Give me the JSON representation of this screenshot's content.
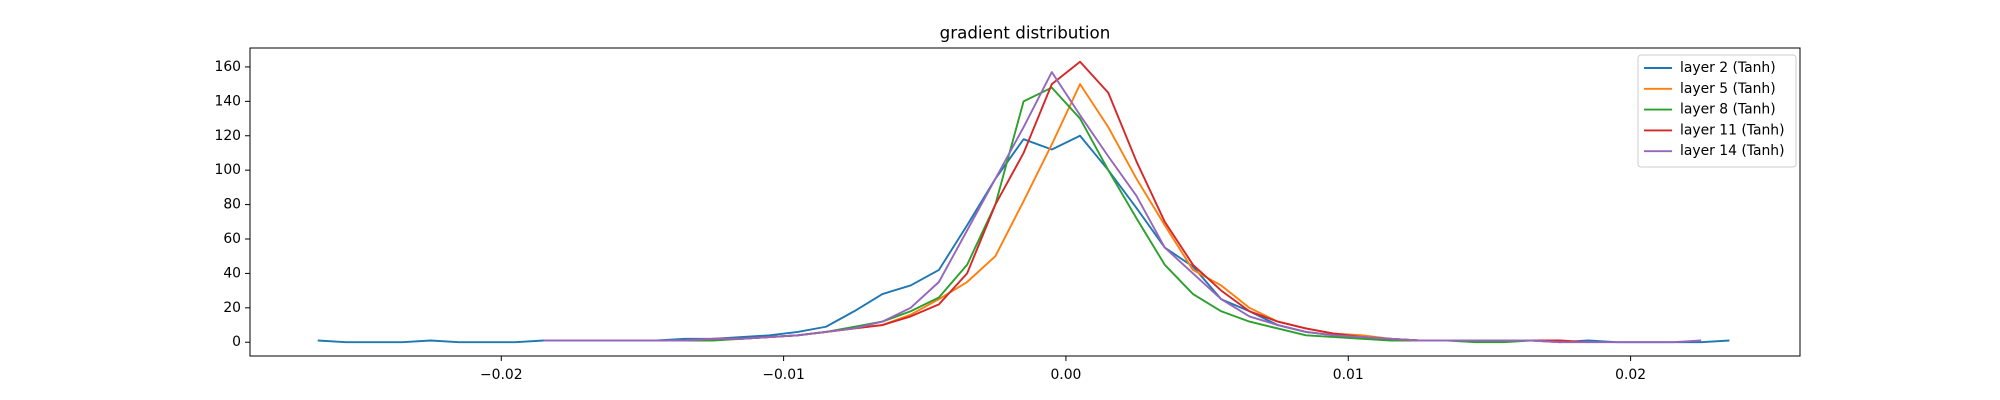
{
  "chart_data": {
    "type": "line",
    "title": "gradient distribution",
    "xlim": [
      -0.0289,
      0.026
    ],
    "ylim": [
      -8,
      171
    ],
    "xticks": [
      {
        "value": -0.02,
        "label": "−0.02"
      },
      {
        "value": -0.01,
        "label": "−0.01"
      },
      {
        "value": 0,
        "label": "0.00"
      },
      {
        "value": 0.01,
        "label": "0.01"
      },
      {
        "value": 0.02,
        "label": "0.02"
      }
    ],
    "yticks": [
      0,
      20,
      40,
      60,
      80,
      100,
      120,
      140,
      160
    ],
    "grid": false,
    "legend": "upper right",
    "series": [
      {
        "name": "layer 2 (Tanh)",
        "color": "#1f77b4",
        "x": [
          -0.0265,
          -0.0255,
          -0.0245,
          -0.0235,
          -0.0225,
          -0.0215,
          -0.0205,
          -0.0195,
          -0.0185,
          -0.0175,
          -0.0165,
          -0.0155,
          -0.0145,
          -0.0135,
          -0.0125,
          -0.0115,
          -0.0105,
          -0.0095,
          -0.0085,
          -0.0075,
          -0.0065,
          -0.0055,
          -0.0045,
          -0.0035,
          -0.0025,
          -0.0015,
          -0.0005,
          0.0005,
          0.0015,
          0.0025,
          0.0035,
          0.0045,
          0.0055,
          0.0065,
          0.0075,
          0.0085,
          0.0095,
          0.0105,
          0.0115,
          0.0125,
          0.0135,
          0.0145,
          0.0155,
          0.0165,
          0.0175,
          0.0185,
          0.0195,
          0.0205,
          0.0215,
          0.0225,
          0.0235
        ],
        "values": [
          1,
          0,
          0,
          0,
          1,
          0,
          0,
          0,
          1,
          1,
          1,
          1,
          1,
          2,
          2,
          3,
          4,
          6,
          9,
          18,
          28,
          33,
          42,
          68,
          95,
          118,
          112,
          120,
          100,
          78,
          55,
          44,
          25,
          18,
          10,
          6,
          4,
          3,
          2,
          1,
          1,
          1,
          1,
          1,
          0,
          1,
          0,
          0,
          0,
          0,
          1
        ]
      },
      {
        "name": "layer 5 (Tanh)",
        "color": "#ff7f0e",
        "x": [
          -0.0175,
          -0.0165,
          -0.0155,
          -0.0145,
          -0.0135,
          -0.0125,
          -0.0115,
          -0.0105,
          -0.0095,
          -0.0085,
          -0.0075,
          -0.0065,
          -0.0055,
          -0.0045,
          -0.0035,
          -0.0025,
          -0.0015,
          -0.0005,
          0.0005,
          0.0015,
          0.0025,
          0.0035,
          0.0045,
          0.0055,
          0.0065,
          0.0075,
          0.0085,
          0.0095,
          0.0105,
          0.0115,
          0.0125,
          0.0135,
          0.0145,
          0.0155,
          0.0165,
          0.0175
        ],
        "values": [
          1,
          1,
          1,
          1,
          1,
          2,
          2,
          3,
          4,
          6,
          8,
          10,
          16,
          25,
          35,
          50,
          82,
          115,
          150,
          125,
          95,
          68,
          42,
          33,
          20,
          12,
          8,
          5,
          4,
          2,
          1,
          1,
          1,
          1,
          1,
          0
        ]
      },
      {
        "name": "layer 8 (Tanh)",
        "color": "#2ca02c",
        "x": [
          -0.0165,
          -0.0155,
          -0.0145,
          -0.0135,
          -0.0125,
          -0.0115,
          -0.0105,
          -0.0095,
          -0.0085,
          -0.0075,
          -0.0065,
          -0.0055,
          -0.0045,
          -0.0035,
          -0.0025,
          -0.0015,
          -0.0005,
          0.0005,
          0.0015,
          0.0025,
          0.0035,
          0.0045,
          0.0055,
          0.0065,
          0.0075,
          0.0085,
          0.0095,
          0.0105,
          0.0115,
          0.0125,
          0.0135,
          0.0145,
          0.0155,
          0.0165
        ],
        "values": [
          1,
          1,
          1,
          1,
          1,
          2,
          3,
          4,
          6,
          9,
          12,
          18,
          26,
          45,
          80,
          140,
          148,
          130,
          100,
          72,
          45,
          28,
          18,
          12,
          8,
          4,
          3,
          2,
          1,
          1,
          1,
          0,
          0,
          1
        ]
      },
      {
        "name": "layer 11 (Tanh)",
        "color": "#d62728",
        "x": [
          -0.0165,
          -0.0155,
          -0.0145,
          -0.0135,
          -0.0125,
          -0.0115,
          -0.0105,
          -0.0095,
          -0.0085,
          -0.0075,
          -0.0065,
          -0.0055,
          -0.0045,
          -0.0035,
          -0.0025,
          -0.0015,
          -0.0005,
          0.0005,
          0.0015,
          0.0025,
          0.0035,
          0.0045,
          0.0055,
          0.0065,
          0.0075,
          0.0085,
          0.0095,
          0.0105,
          0.0115,
          0.0125,
          0.0135,
          0.0145,
          0.0155,
          0.0165,
          0.0175,
          0.0185
        ],
        "values": [
          1,
          1,
          1,
          1,
          2,
          2,
          3,
          4,
          6,
          8,
          10,
          15,
          22,
          40,
          80,
          110,
          150,
          163,
          145,
          105,
          70,
          45,
          30,
          18,
          12,
          8,
          5,
          3,
          2,
          1,
          1,
          1,
          1,
          1,
          1,
          0
        ]
      },
      {
        "name": "layer 14 (Tanh)",
        "color": "#9467bd",
        "x": [
          -0.0185,
          -0.0175,
          -0.0165,
          -0.0155,
          -0.0145,
          -0.0135,
          -0.0125,
          -0.0115,
          -0.0105,
          -0.0095,
          -0.0085,
          -0.0075,
          -0.0065,
          -0.0055,
          -0.0045,
          -0.0035,
          -0.0025,
          -0.0015,
          -0.0005,
          0.0005,
          0.0015,
          0.0025,
          0.0035,
          0.0045,
          0.0055,
          0.0065,
          0.0075,
          0.0085,
          0.0095,
          0.0105,
          0.0115,
          0.0125,
          0.0135,
          0.0145,
          0.0155,
          0.0165,
          0.0175,
          0.0185,
          0.0195,
          0.0205,
          0.0215,
          0.0225
        ],
        "values": [
          1,
          1,
          1,
          1,
          1,
          1,
          2,
          2,
          3,
          4,
          6,
          8,
          12,
          20,
          35,
          65,
          95,
          125,
          157,
          132,
          108,
          85,
          55,
          40,
          25,
          15,
          10,
          6,
          4,
          3,
          2,
          1,
          1,
          1,
          1,
          1,
          0,
          0,
          0,
          0,
          0,
          1
        ]
      }
    ]
  }
}
